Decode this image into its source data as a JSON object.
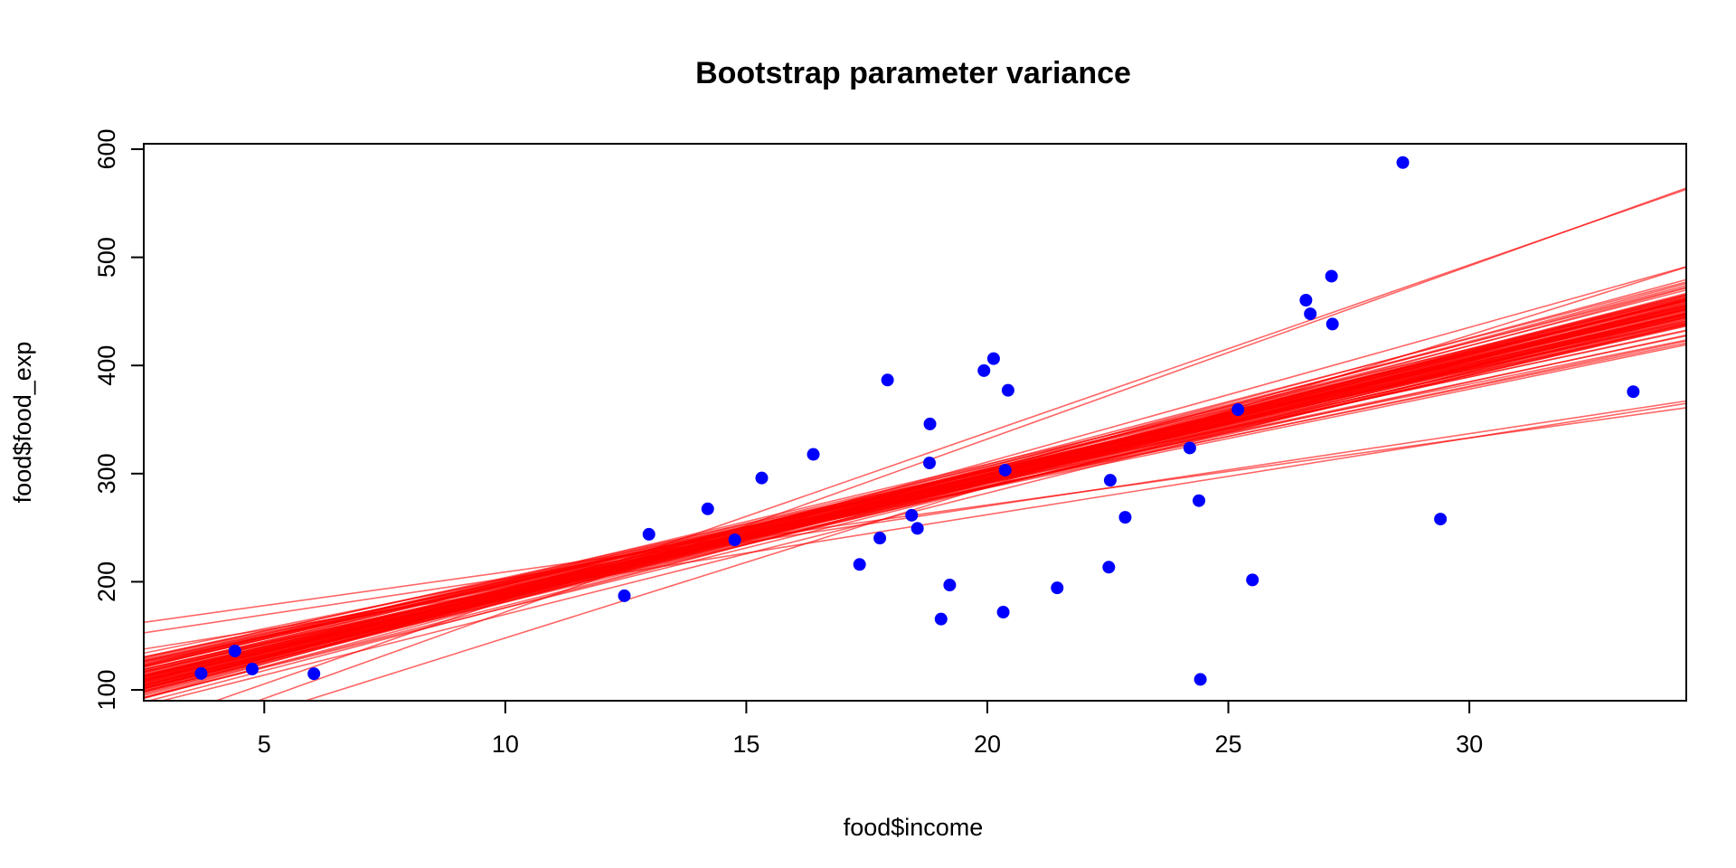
{
  "chart_data": {
    "type": "scatter",
    "title": "Bootstrap parameter variance",
    "xlabel": "food$income",
    "ylabel": "food$food_exp",
    "xlim": [
      2.5,
      34.5
    ],
    "ylim": [
      90,
      605
    ],
    "x_ticks": [
      5,
      10,
      15,
      20,
      25,
      30
    ],
    "y_ticks": [
      100,
      200,
      300,
      400,
      500,
      600
    ],
    "grid": false,
    "legend": "none",
    "colors": {
      "points": "#0000ff",
      "lines": "#ff0000",
      "axes": "#000000"
    },
    "points": [
      {
        "x": 3.69,
        "y": 115.2
      },
      {
        "x": 4.39,
        "y": 135.98
      },
      {
        "x": 4.75,
        "y": 119.34
      },
      {
        "x": 6.03,
        "y": 114.96
      },
      {
        "x": 12.47,
        "y": 187.05
      },
      {
        "x": 12.98,
        "y": 243.92
      },
      {
        "x": 14.2,
        "y": 267.43
      },
      {
        "x": 14.76,
        "y": 238.71
      },
      {
        "x": 15.32,
        "y": 295.94
      },
      {
        "x": 16.39,
        "y": 317.78
      },
      {
        "x": 17.35,
        "y": 216.0
      },
      {
        "x": 17.77,
        "y": 240.35
      },
      {
        "x": 17.93,
        "y": 386.57
      },
      {
        "x": 18.43,
        "y": 261.53
      },
      {
        "x": 18.55,
        "y": 249.34
      },
      {
        "x": 18.8,
        "y": 309.87
      },
      {
        "x": 18.81,
        "y": 345.89
      },
      {
        "x": 19.04,
        "y": 165.54
      },
      {
        "x": 19.22,
        "y": 196.98
      },
      {
        "x": 19.93,
        "y": 395.26
      },
      {
        "x": 20.13,
        "y": 406.34
      },
      {
        "x": 20.33,
        "y": 171.92
      },
      {
        "x": 20.37,
        "y": 303.23
      },
      {
        "x": 20.43,
        "y": 377.04
      },
      {
        "x": 21.45,
        "y": 194.35
      },
      {
        "x": 22.52,
        "y": 213.48
      },
      {
        "x": 22.55,
        "y": 293.87
      },
      {
        "x": 22.86,
        "y": 259.61
      },
      {
        "x": 24.2,
        "y": 323.71
      },
      {
        "x": 24.39,
        "y": 275.02
      },
      {
        "x": 24.42,
        "y": 109.71
      },
      {
        "x": 25.2,
        "y": 359.19
      },
      {
        "x": 25.5,
        "y": 201.71
      },
      {
        "x": 26.61,
        "y": 460.36
      },
      {
        "x": 26.7,
        "y": 447.76
      },
      {
        "x": 27.14,
        "y": 482.55
      },
      {
        "x": 27.16,
        "y": 438.29
      },
      {
        "x": 28.62,
        "y": 587.66
      },
      {
        "x": 29.4,
        "y": 257.95
      },
      {
        "x": 33.4,
        "y": 375.73
      }
    ],
    "bootstrap_lines_description": "100 fitted lines y = a + b*x from bootstrap resamples",
    "bootstrap_lines": [
      {
        "intercept": 100.8,
        "slope": 9.62
      },
      {
        "intercept": 95.29,
        "slope": 10.34
      },
      {
        "intercept": 75.81,
        "slope": 11.07
      },
      {
        "intercept": 96.55,
        "slope": 10.61
      },
      {
        "intercept": 70.81,
        "slope": 11.21
      },
      {
        "intercept": 78.62,
        "slope": 11.41
      },
      {
        "intercept": 107.77,
        "slope": 9.07
      },
      {
        "intercept": 92.34,
        "slope": 10.47
      },
      {
        "intercept": 77.73,
        "slope": 10.73
      },
      {
        "intercept": 75.4,
        "slope": 11.43
      },
      {
        "intercept": 93.79,
        "slope": 9.97
      },
      {
        "intercept": 57.63,
        "slope": 11.22
      },
      {
        "intercept": 61.74,
        "slope": 12.45
      },
      {
        "intercept": 66.04,
        "slope": 11.98
      },
      {
        "intercept": 69.58,
        "slope": 11.48
      },
      {
        "intercept": 74.72,
        "slope": 10.65
      },
      {
        "intercept": 106.35,
        "slope": 9.65
      },
      {
        "intercept": 92.43,
        "slope": 10.53
      },
      {
        "intercept": 81.68,
        "slope": 10.74
      },
      {
        "intercept": 74.36,
        "slope": 11.22
      },
      {
        "intercept": 73.13,
        "slope": 11.32
      },
      {
        "intercept": 59.59,
        "slope": 11.65
      },
      {
        "intercept": 83.4,
        "slope": 10.59
      },
      {
        "intercept": 85.77,
        "slope": 10.47
      },
      {
        "intercept": 90.12,
        "slope": 10.72
      },
      {
        "intercept": 86.59,
        "slope": 10.23
      },
      {
        "intercept": 82.14,
        "slope": 10.83
      },
      {
        "intercept": 74.49,
        "slope": 11.06
      },
      {
        "intercept": 97.51,
        "slope": 10.23
      },
      {
        "intercept": 76.24,
        "slope": 11.13
      },
      {
        "intercept": 76.21,
        "slope": 11.1
      },
      {
        "intercept": 104.47,
        "slope": 9.12
      },
      {
        "intercept": 83.51,
        "slope": 10.68
      },
      {
        "intercept": 104.75,
        "slope": 9.91
      },
      {
        "intercept": 65.1,
        "slope": 11.08
      },
      {
        "intercept": 75.91,
        "slope": 11.22
      },
      {
        "intercept": 62.42,
        "slope": 11.86
      },
      {
        "intercept": 98.11,
        "slope": 10.28
      },
      {
        "intercept": 102.42,
        "slope": 9.28
      },
      {
        "intercept": 79.14,
        "slope": 10.9
      },
      {
        "intercept": 64.5,
        "slope": 11.34
      },
      {
        "intercept": 75.61,
        "slope": 11.64
      },
      {
        "intercept": 79.6,
        "slope": 11.02
      },
      {
        "intercept": 69.91,
        "slope": 11.71
      },
      {
        "intercept": 102.0,
        "slope": 9.83
      },
      {
        "intercept": 87.14,
        "slope": 10.56
      },
      {
        "intercept": 82.94,
        "slope": 10.43
      },
      {
        "intercept": 111.35,
        "slope": 9.05
      },
      {
        "intercept": 95.47,
        "slope": 9.64
      },
      {
        "intercept": 71.03,
        "slope": 11.1
      },
      {
        "intercept": 85.84,
        "slope": 10.81
      },
      {
        "intercept": 96.33,
        "slope": 10.11
      },
      {
        "intercept": 74.11,
        "slope": 11.22
      },
      {
        "intercept": 95.23,
        "slope": 10.34
      },
      {
        "intercept": 72.17,
        "slope": 11.38
      },
      {
        "intercept": 82.56,
        "slope": 10.62
      },
      {
        "intercept": 91.88,
        "slope": 10.11
      },
      {
        "intercept": 79.48,
        "slope": 10.65
      },
      {
        "intercept": 81.36,
        "slope": 10.69
      },
      {
        "intercept": 83.48,
        "slope": 10.24
      },
      {
        "intercept": 92.11,
        "slope": 10.03
      },
      {
        "intercept": 102.7,
        "slope": 9.79
      },
      {
        "intercept": 64.93,
        "slope": 11.91
      },
      {
        "intercept": 80.24,
        "slope": 10.38
      },
      {
        "intercept": 82.62,
        "slope": 10.59
      },
      {
        "intercept": 79.12,
        "slope": 10.4
      },
      {
        "intercept": 89.86,
        "slope": 10.49
      },
      {
        "intercept": 71.94,
        "slope": 11.38
      },
      {
        "intercept": 73.6,
        "slope": 11.07
      },
      {
        "intercept": 95.59,
        "slope": 10.56
      },
      {
        "intercept": 80.89,
        "slope": 11.04
      },
      {
        "intercept": 86.24,
        "slope": 10.39
      },
      {
        "intercept": 74.75,
        "slope": 10.94
      },
      {
        "intercept": 102.46,
        "slope": 9.42
      },
      {
        "intercept": 76.66,
        "slope": 10.91
      },
      {
        "intercept": 85.53,
        "slope": 10.38
      },
      {
        "intercept": 85.24,
        "slope": 10.86
      },
      {
        "intercept": 96.76,
        "slope": 10.19
      },
      {
        "intercept": 89.68,
        "slope": 10.28
      },
      {
        "intercept": 69.27,
        "slope": 11.52
      },
      {
        "intercept": 87.4,
        "slope": 10.46
      },
      {
        "intercept": 89.34,
        "slope": 10.06
      },
      {
        "intercept": 82.13,
        "slope": 11.11
      },
      {
        "intercept": 81.11,
        "slope": 10.58
      },
      {
        "intercept": 90.48,
        "slope": 10.26
      },
      {
        "intercept": 73.71,
        "slope": 11.23
      },
      {
        "intercept": 85.56,
        "slope": 10.45
      },
      {
        "intercept": 84.16,
        "slope": 10.75
      },
      {
        "intercept": 104.9,
        "slope": 9.48
      },
      {
        "intercept": 86.68,
        "slope": 10.38
      },
      {
        "intercept": 69.14,
        "slope": 11.25
      },
      {
        "intercept": 76.71,
        "slope": 10.95
      },
      {
        "intercept": 87.14,
        "slope": 10.57
      },
      {
        "intercept": 147.0,
        "slope": 6.2
      },
      {
        "intercept": 136.0,
        "slope": 6.7
      },
      {
        "intercept": 28.0,
        "slope": 15.5
      },
      {
        "intercept": 12.0,
        "slope": 16.0
      },
      {
        "intercept": 120.0,
        "slope": 7.1
      },
      {
        "intercept": 8.0,
        "slope": 14.0
      }
    ]
  }
}
